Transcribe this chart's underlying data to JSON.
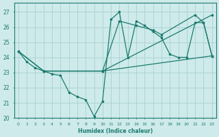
{
  "xlabel": "Humidex (Indice chaleur)",
  "bg_color": "#ceeaea",
  "line_color": "#1a7a6e",
  "grid_color": "#aed4d4",
  "xlim": [
    -0.5,
    23.5
  ],
  "ylim": [
    20,
    27.6
  ],
  "yticks": [
    20,
    21,
    22,
    23,
    24,
    25,
    26,
    27
  ],
  "xticks": [
    0,
    1,
    2,
    3,
    4,
    5,
    6,
    7,
    8,
    9,
    10,
    11,
    12,
    13,
    14,
    15,
    16,
    17,
    18,
    19,
    20,
    21,
    22,
    23
  ],
  "line1_x": [
    0,
    1,
    2,
    3,
    4,
    5,
    6,
    7,
    8,
    9,
    10,
    11,
    12,
    13,
    14,
    15,
    16,
    17,
    18,
    19,
    20,
    21,
    22,
    23
  ],
  "line1_y": [
    24.4,
    23.7,
    23.3,
    23.1,
    22.9,
    22.8,
    21.7,
    21.4,
    21.2,
    20.1,
    21.1,
    26.5,
    27.0,
    24.0,
    26.4,
    26.1,
    25.7,
    25.3,
    24.2,
    24.0,
    24.0,
    26.3,
    26.3,
    24.1
  ],
  "line2_x": [
    0,
    3,
    10,
    23
  ],
  "line2_y": [
    24.4,
    23.1,
    23.1,
    26.8
  ],
  "line3_x": [
    0,
    3,
    10,
    23
  ],
  "line3_y": [
    24.4,
    23.1,
    23.1,
    24.1
  ],
  "line4_x": [
    3,
    10,
    12,
    14,
    16,
    17,
    21,
    22,
    23
  ],
  "line4_y": [
    23.1,
    23.1,
    26.4,
    26.1,
    25.8,
    25.5,
    26.8,
    26.3,
    24.1
  ]
}
